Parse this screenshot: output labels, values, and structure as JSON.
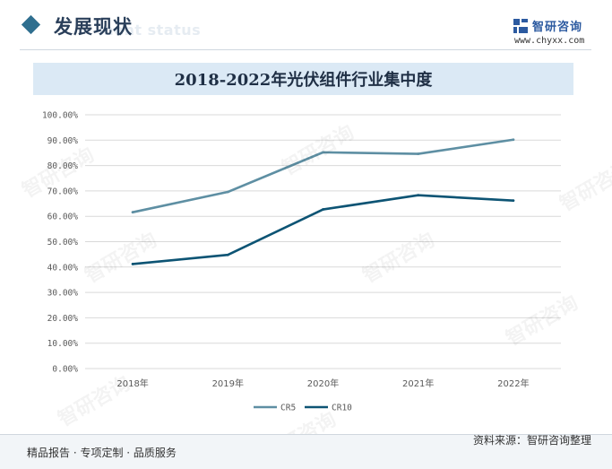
{
  "header": {
    "section_title": "发展现状",
    "section_subtitle": "ment status",
    "logo_name": "智研咨询",
    "logo_url": "www.chyxx.com"
  },
  "watermark_text": "智研咨询",
  "footer": {
    "left": "精品报告 · 专项定制 · 品质服务",
    "right": "资料来源：智研咨询整理"
  },
  "colors": {
    "cr5": "#5e8fa3",
    "cr10": "#0d5474",
    "title_bg": "#dbe9f5",
    "grid": "#d9d9d9"
  },
  "chart_data": {
    "type": "line",
    "title": "2018-2022年光伏组件行业集中度",
    "categories": [
      "2018年",
      "2019年",
      "2020年",
      "2021年",
      "2022年"
    ],
    "y_ticks": [
      "0.00%",
      "10.00%",
      "20.00%",
      "30.00%",
      "40.00%",
      "50.00%",
      "60.00%",
      "70.00%",
      "80.00%",
      "90.00%",
      "100.00%"
    ],
    "ylim": [
      0,
      100
    ],
    "grid": true,
    "legend_position": "bottom",
    "series": [
      {
        "name": "CR5",
        "values": [
          61.6,
          69.6,
          85.2,
          84.6,
          90.2
        ]
      },
      {
        "name": "CR10",
        "values": [
          41.2,
          44.8,
          62.7,
          68.3,
          66.2
        ]
      }
    ]
  }
}
